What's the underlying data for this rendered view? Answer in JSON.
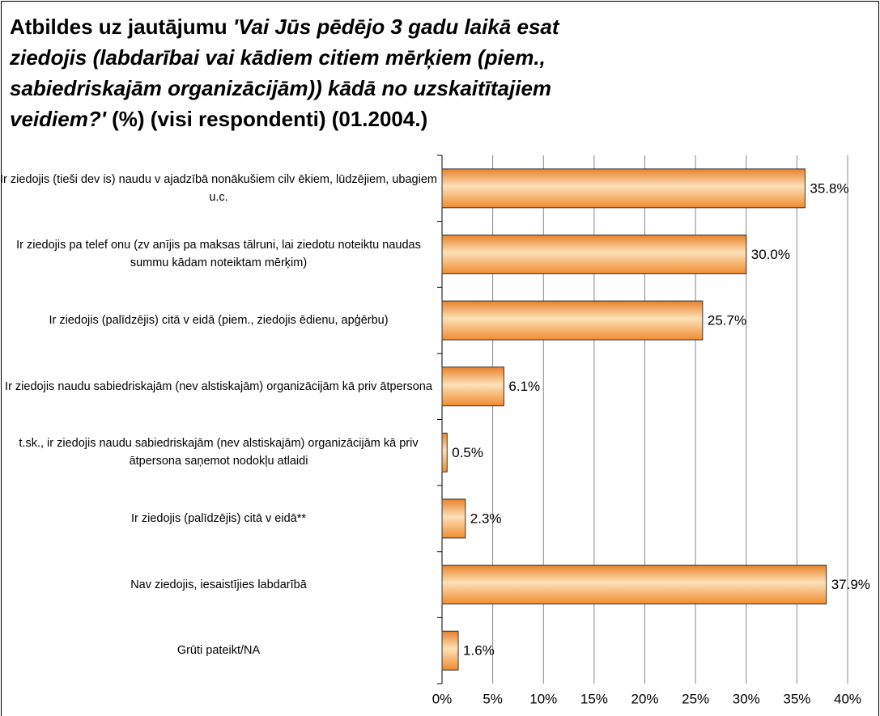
{
  "chart_data": {
    "type": "bar",
    "orientation": "horizontal",
    "title": [
      "Atbildes uz jautājumu ",
      "'Vai Jūs pēdējo 3 gadu laikā esat ziedojis (labdarībai vai kādiem citiem mērķiem (piem., sabiedriskajām organizācijām)) kādā no uzskaitītajiem veidiem?'",
      " (%) (visi respondenti) (01.2004.)"
    ],
    "categories": [
      "Ir ziedojis (tieši dev is) naudu v ajadzībā nonākušiem cilv ēkiem, lūdzējiem, ubagiem u.c.",
      "Ir ziedojis pa telef onu (zv anījis pa maksas tālruni, lai ziedotu noteiktu naudas summu kādam noteiktam mērķim)",
      "Ir ziedojis (palīdzējis) citā v eidā (piem., ziedojis ēdienu, apģērbu)",
      "Ir ziedojis naudu sabiedriskajām (nev alstiskajām) organizācijām kā priv ātpersona",
      "t.sk., ir ziedojis naudu sabiedriskajām (nev alstiskajām) organizācijām kā priv ātpersona saņemot nodokļu atlaidi",
      "Ir ziedojis (palīdzējis) citā v eidā**",
      "Nav  ziedojis, iesaistījies labdarībā",
      "Grūti pateikt/NA"
    ],
    "values": [
      35.8,
      30.0,
      25.7,
      6.1,
      0.5,
      2.3,
      37.9,
      1.6
    ],
    "value_labels": [
      "35.8%",
      "30.0%",
      "25.7%",
      "6.1%",
      "0.5%",
      "2.3%",
      "37.9%",
      "1.6%"
    ],
    "color": "#f59a3c",
    "xlim": [
      0,
      40
    ],
    "xticks": [
      {
        "value": 0,
        "label": "0%"
      },
      {
        "value": 5,
        "label": "5%"
      },
      {
        "value": 10,
        "label": "10%"
      },
      {
        "value": 15,
        "label": "15%"
      },
      {
        "value": 20,
        "label": "20%"
      },
      {
        "value": 25,
        "label": "25%"
      },
      {
        "value": 30,
        "label": "30%"
      },
      {
        "value": 35,
        "label": "35%"
      },
      {
        "value": 40,
        "label": "40%"
      }
    ],
    "grid": true
  }
}
